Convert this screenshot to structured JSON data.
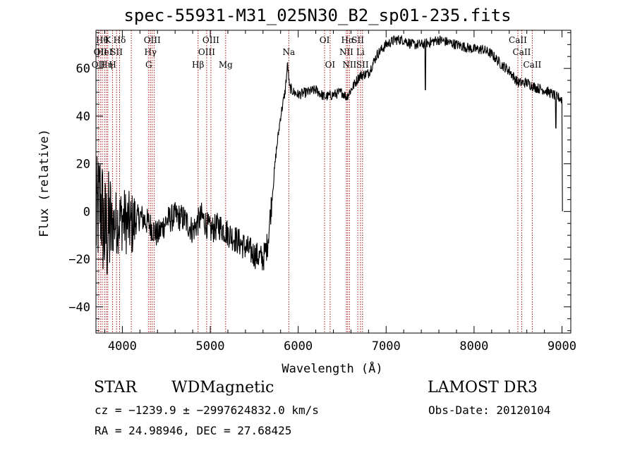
{
  "title": "spec-55931-M31_025N30_B2_sp01-235.fits",
  "info": {
    "class": "STAR",
    "subclass": "WDMagnetic",
    "survey": "LAMOST DR3",
    "cz_line": "cz = −1239.9 ± −2997624832.0 km/s",
    "obs_date": "Obs-Date: 20120104",
    "radec": "RA =  24.98946, DEC =  27.68425"
  },
  "chart_data": {
    "type": "line",
    "title": "spec-55931-M31_025N30_B2_sp01-235.fits",
    "xlabel": "Wavelength (Å)",
    "ylabel": "Flux (relative)",
    "xlim": [
      3700,
      9100
    ],
    "ylim": [
      -51,
      76
    ],
    "x_ticks": [
      4000,
      5000,
      6000,
      7000,
      8000,
      9000
    ],
    "x_tick_labels": [
      "4000",
      "5000",
      "6000",
      "7000",
      "8000",
      "9000"
    ],
    "y_ticks": [
      -40,
      -20,
      0,
      20,
      40,
      60
    ],
    "y_tick_labels": [
      "−40",
      "−20",
      "0",
      "20",
      "40",
      "60"
    ],
    "line_color": "#000000",
    "marker_color": "#aa1111",
    "spectrum_anchors": [
      [
        3700,
        -5
      ],
      [
        3750,
        5
      ],
      [
        3800,
        -10
      ],
      [
        3900,
        -5
      ],
      [
        4000,
        -3
      ],
      [
        4100,
        -6
      ],
      [
        4200,
        -2
      ],
      [
        4300,
        -5
      ],
      [
        4400,
        -10
      ],
      [
        4500,
        -4
      ],
      [
        4600,
        -2
      ],
      [
        4700,
        -3
      ],
      [
        4800,
        -8
      ],
      [
        4900,
        -2
      ],
      [
        5000,
        -8
      ],
      [
        5100,
        -6
      ],
      [
        5200,
        -9
      ],
      [
        5300,
        -12
      ],
      [
        5400,
        -15
      ],
      [
        5500,
        -18
      ],
      [
        5600,
        -20
      ],
      [
        5650,
        -14
      ],
      [
        5700,
        5
      ],
      [
        5750,
        25
      ],
      [
        5800,
        40
      ],
      [
        5850,
        50
      ],
      [
        5880,
        62
      ],
      [
        5900,
        52
      ],
      [
        5950,
        50
      ],
      [
        6000,
        49
      ],
      [
        6100,
        50
      ],
      [
        6200,
        51
      ],
      [
        6300,
        48
      ],
      [
        6400,
        49
      ],
      [
        6500,
        50
      ],
      [
        6550,
        48
      ],
      [
        6600,
        51
      ],
      [
        6700,
        57
      ],
      [
        6800,
        58
      ],
      [
        6900,
        66
      ],
      [
        7000,
        70
      ],
      [
        7100,
        72
      ],
      [
        7200,
        72
      ],
      [
        7300,
        70
      ],
      [
        7400,
        70
      ],
      [
        7500,
        71
      ],
      [
        7600,
        72
      ],
      [
        7700,
        71
      ],
      [
        7800,
        70
      ],
      [
        7900,
        69
      ],
      [
        8000,
        68
      ],
      [
        8100,
        68
      ],
      [
        8200,
        66
      ],
      [
        8300,
        62
      ],
      [
        8400,
        59
      ],
      [
        8500,
        54
      ],
      [
        8600,
        54
      ],
      [
        8700,
        52
      ],
      [
        8800,
        51
      ],
      [
        8900,
        49
      ],
      [
        8950,
        48
      ],
      [
        9000,
        47
      ]
    ],
    "spectrum_noise": [
      {
        "from": 3700,
        "to": 3880,
        "amplitude": 26
      },
      {
        "from": 3880,
        "to": 4150,
        "amplitude": 14
      },
      {
        "from": 4150,
        "to": 5700,
        "amplitude": 6
      },
      {
        "from": 5700,
        "to": 9000,
        "amplitude": 2.2
      }
    ],
    "spectrum_features": [
      {
        "x": 7445,
        "y": 51
      },
      {
        "x": 8930,
        "y": 35
      },
      {
        "x": 9005,
        "y": 0
      }
    ],
    "line_markers": [
      {
        "x": 3727,
        "labels": [
          "OII"
        ],
        "row": 2
      },
      {
        "x": 3750,
        "labels": [
          "OII"
        ],
        "row": 1
      },
      {
        "x": 3771,
        "labels": [
          "Hθ"
        ],
        "row": 0
      },
      {
        "x": 3798,
        "labels": [
          "HeI"
        ],
        "row": 1
      },
      {
        "x": 3820,
        "labels": [
          "Hη"
        ],
        "row": 2
      },
      {
        "x": 3835,
        "labels": [
          "K"
        ],
        "row": 0
      },
      {
        "x": 3889,
        "labels": [
          "H"
        ],
        "row": 2
      },
      {
        "x": 3934,
        "labels": [
          "SII"
        ],
        "row": 1
      },
      {
        "x": 3969,
        "labels": [
          "Hδ"
        ],
        "row": 0
      },
      {
        "x": 4102,
        "labels": [],
        "row": 0
      },
      {
        "x": 4300,
        "labels": [
          "G"
        ],
        "row": 2
      },
      {
        "x": 4320,
        "labels": [
          "Hγ"
        ],
        "row": 1
      },
      {
        "x": 4340,
        "labels": [
          "OIII"
        ],
        "row": 0
      },
      {
        "x": 4363,
        "labels": [],
        "row": 0
      },
      {
        "x": 4861,
        "labels": [
          "Hβ"
        ],
        "row": 2
      },
      {
        "x": 4959,
        "labels": [
          "OIII"
        ],
        "row": 1
      },
      {
        "x": 5007,
        "labels": [
          "OIII"
        ],
        "row": 0
      },
      {
        "x": 5175,
        "labels": [
          "Mg"
        ],
        "row": 2
      },
      {
        "x": 5893,
        "labels": [
          "Na"
        ],
        "row": 1
      },
      {
        "x": 6300,
        "labels": [
          "OI"
        ],
        "row": 0
      },
      {
        "x": 6363,
        "labels": [
          "OI"
        ],
        "row": 2
      },
      {
        "x": 6548,
        "labels": [
          "NII"
        ],
        "row": 1
      },
      {
        "x": 6563,
        "labels": [
          "Hα"
        ],
        "row": 0
      },
      {
        "x": 6583,
        "labels": [
          "NII"
        ],
        "row": 2
      },
      {
        "x": 6678,
        "labels": [
          "SII"
        ],
        "row": 0
      },
      {
        "x": 6708,
        "labels": [
          "Li"
        ],
        "row": 1
      },
      {
        "x": 6731,
        "labels": [
          "SII"
        ],
        "row": 2
      },
      {
        "x": 8498,
        "labels": [
          "CaII"
        ],
        "row": 0
      },
      {
        "x": 8542,
        "labels": [
          "CaII"
        ],
        "row": 1
      },
      {
        "x": 8662,
        "labels": [
          "CaII"
        ],
        "row": 2
      }
    ]
  }
}
